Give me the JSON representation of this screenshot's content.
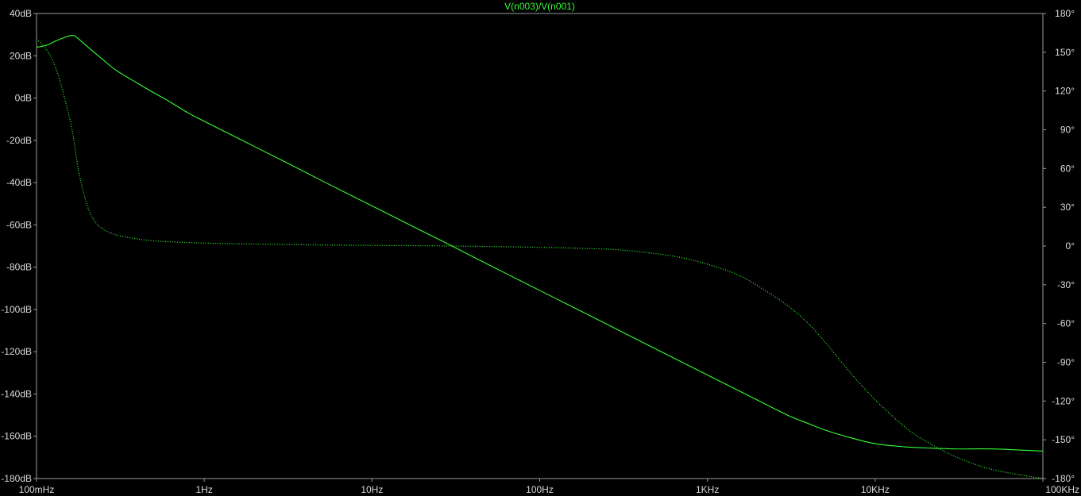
{
  "chart_data": {
    "type": "line",
    "title": "V(n003)/V(n001)",
    "x_scale": "log",
    "xlim": [
      0.1,
      100000
    ],
    "x_ticks": [
      {
        "value": 0.1,
        "label": "100mHz"
      },
      {
        "value": 1,
        "label": "1Hz"
      },
      {
        "value": 10,
        "label": "10Hz"
      },
      {
        "value": 100,
        "label": "100Hz"
      },
      {
        "value": 1000,
        "label": "1KHz"
      },
      {
        "value": 10000,
        "label": "10KHz"
      },
      {
        "value": 100000,
        "label": "100KHz"
      }
    ],
    "y_left": {
      "lim": [
        -180,
        40
      ],
      "ticks": [
        {
          "value": 40,
          "label": "40dB"
        },
        {
          "value": 20,
          "label": "20dB"
        },
        {
          "value": 0,
          "label": "0dB"
        },
        {
          "value": -20,
          "label": "-20dB"
        },
        {
          "value": -40,
          "label": "-40dB"
        },
        {
          "value": -60,
          "label": "-60dB"
        },
        {
          "value": -80,
          "label": "-80dB"
        },
        {
          "value": -100,
          "label": "-100dB"
        },
        {
          "value": -120,
          "label": "-120dB"
        },
        {
          "value": -140,
          "label": "-140dB"
        },
        {
          "value": -160,
          "label": "-160dB"
        },
        {
          "value": -180,
          "label": "-180dB"
        }
      ]
    },
    "y_right": {
      "lim": [
        -180,
        180
      ],
      "ticks": [
        {
          "value": 180,
          "label": "180°"
        },
        {
          "value": 150,
          "label": "150°"
        },
        {
          "value": 120,
          "label": "120°"
        },
        {
          "value": 90,
          "label": "90°"
        },
        {
          "value": 60,
          "label": "60°"
        },
        {
          "value": 30,
          "label": "30°"
        },
        {
          "value": 0,
          "label": "0°"
        },
        {
          "value": -30,
          "label": "-30°"
        },
        {
          "value": -60,
          "label": "-60°"
        },
        {
          "value": -90,
          "label": "-90°"
        },
        {
          "value": -120,
          "label": "-120°"
        },
        {
          "value": -150,
          "label": "-150°"
        },
        {
          "value": -180,
          "label": "-180°"
        }
      ]
    },
    "grid": false,
    "colors": {
      "trace": "#33ff33",
      "axis": "#9a9a9a",
      "text": "#d9d9d9",
      "background": "#000000"
    },
    "series": [
      {
        "style": "solid",
        "axis": "left",
        "x": [
          0.1,
          0.115,
          0.13,
          0.145,
          0.158,
          0.168,
          0.178,
          0.2,
          0.25,
          0.3,
          0.4,
          0.5,
          0.6,
          0.8,
          1,
          1.5,
          2,
          3,
          5,
          10,
          20,
          30,
          50,
          100,
          200,
          500,
          1000,
          2000,
          3000,
          4000,
          5000,
          7000,
          10000,
          15000,
          20000,
          30000,
          50000,
          100000
        ],
        "y": [
          24,
          25,
          27,
          28.5,
          29.5,
          29.5,
          28,
          24.5,
          18,
          13,
          7,
          2.5,
          -1,
          -7,
          -11,
          -18,
          -23,
          -30,
          -39,
          -51,
          -63,
          -70,
          -79,
          -91,
          -103,
          -119,
          -131,
          -143,
          -150,
          -154,
          -157,
          -160.5,
          -163.5,
          -165,
          -165.5,
          -166,
          -166,
          -167
        ]
      },
      {
        "style": "dotted",
        "axis": "right",
        "x": [
          0.1,
          0.11,
          0.12,
          0.13,
          0.14,
          0.16,
          0.17,
          0.18,
          0.2,
          0.22,
          0.25,
          0.3,
          0.4,
          0.5,
          0.7,
          1,
          2,
          5,
          10,
          30,
          100,
          200,
          300,
          500,
          700,
          1000,
          1500,
          2000,
          3000,
          4000,
          5000,
          7000,
          10000,
          15000,
          20000,
          30000,
          50000,
          100000
        ],
        "y": [
          160,
          155,
          148,
          138,
          125,
          95,
          75,
          55,
          32,
          20,
          13,
          8.5,
          5.5,
          4,
          3,
          2.3,
          1.5,
          0.8,
          0.5,
          0,
          -1,
          -2,
          -3,
          -6,
          -9,
          -14,
          -22,
          -31,
          -46,
          -60,
          -74,
          -97,
          -119,
          -140,
          -151,
          -163,
          -173,
          -180
        ]
      }
    ]
  }
}
